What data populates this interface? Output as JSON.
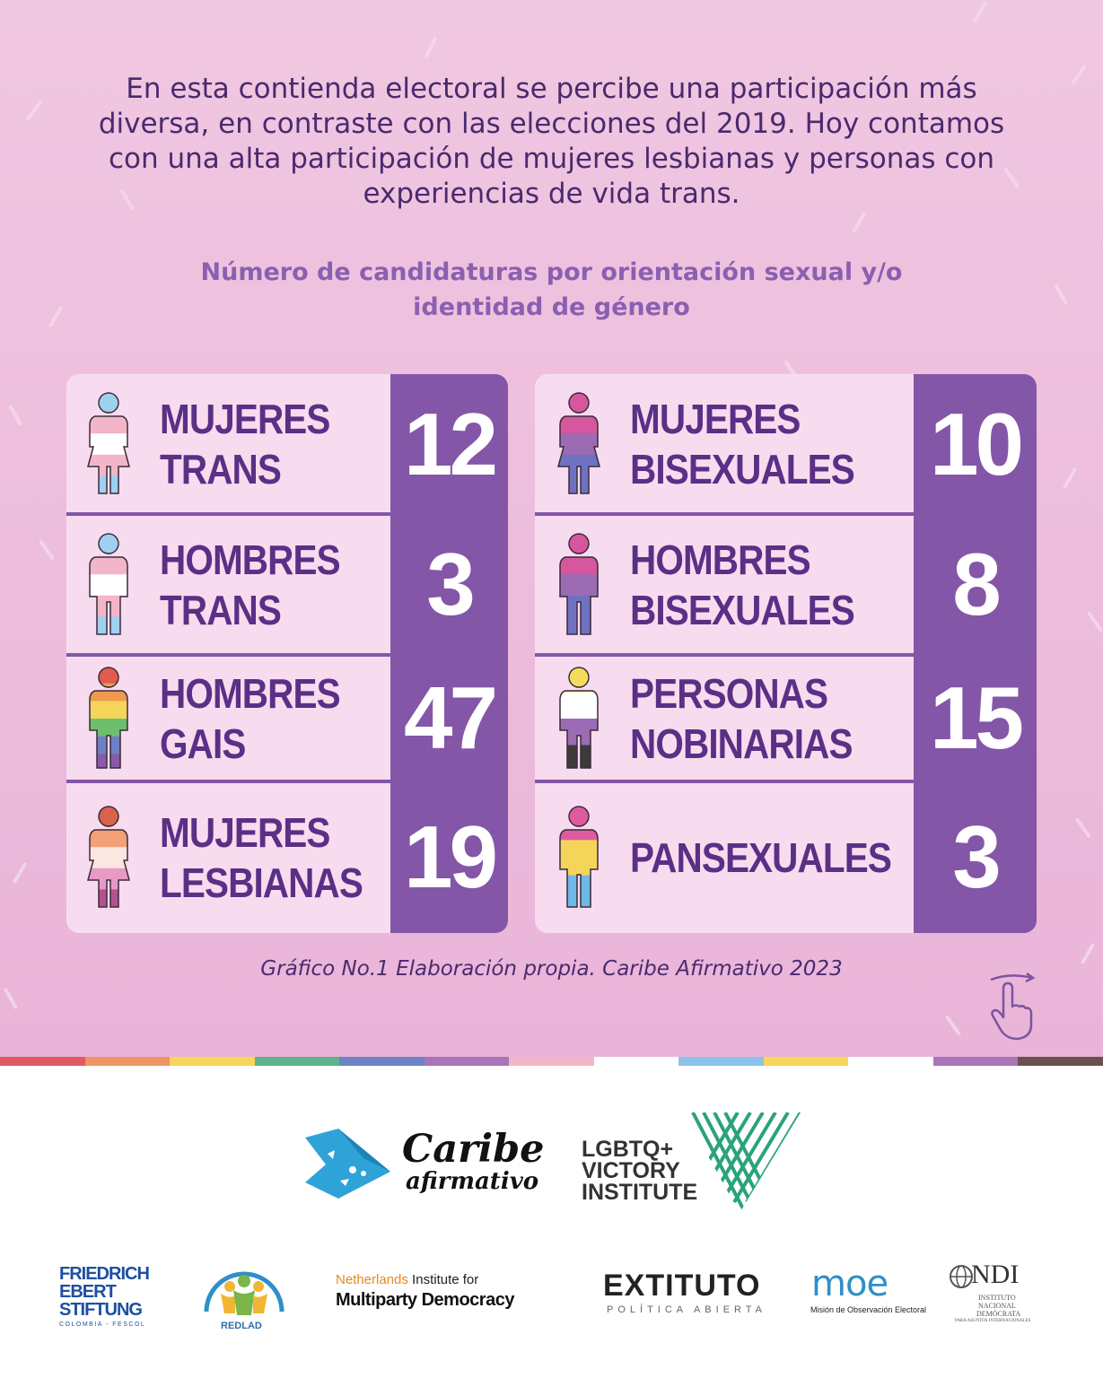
{
  "intro_text": "En esta contienda electoral se percibe una participación más diversa, en contraste con las elecciones del 2019. Hoy contamos con una alta participación de mujeres lesbianas y personas con experiencias de vida trans.",
  "chart_data": {
    "type": "table",
    "title": "Número de candidaturas por orientación sexual y/o identidad de género",
    "categories": [
      "MUJERES TRANS",
      "HOMBRES TRANS",
      "HOMBRES GAIS",
      "MUJERES LESBIANAS",
      "MUJERES BISEXUALES",
      "HOMBRES BISEXUALES",
      "PERSONAS NOBINARIAS",
      "PANSEXUALES"
    ],
    "values": [
      12,
      3,
      47,
      19,
      10,
      8,
      15,
      3
    ],
    "rows_left": [
      {
        "line1": "MUJERES",
        "line2": "TRANS",
        "value": "12"
      },
      {
        "line1": "HOMBRES",
        "line2": "TRANS",
        "value": "3"
      },
      {
        "line1": "HOMBRES",
        "line2": "GAIS",
        "value": "47"
      },
      {
        "line1": "MUJERES",
        "line2": "LESBIANAS",
        "value": "19"
      }
    ],
    "rows_right": [
      {
        "line1": "MUJERES",
        "line2": "BISEXUALES",
        "value": "10"
      },
      {
        "line1": "HOMBRES",
        "line2": "BISEXUALES",
        "value": "8"
      },
      {
        "line1": "PERSONAS",
        "line2": "NOBINARIAS",
        "value": "15"
      },
      {
        "line1": "PANSEXUALES",
        "line2": "",
        "value": "3"
      }
    ]
  },
  "caption": "Gráfico No.1 Elaboración propia. Caribe Afirmativo 2023",
  "colors": {
    "background": "#f0c7e1",
    "panel": "#f7dcef",
    "number_column": "#8456a8",
    "label_text": "#5b2f86",
    "title_text": "#8b5fb0"
  },
  "icons": {
    "swipe": "swipe-hand-icon",
    "figures": [
      "trans-flag-woman-icon",
      "trans-flag-man-icon",
      "rainbow-flag-man-icon",
      "lesbian-flag-woman-icon",
      "bisexual-flag-woman-icon",
      "bisexual-flag-man-icon",
      "nonbinary-flag-person-icon",
      "pansexual-flag-person-icon"
    ]
  },
  "logos": {
    "caribe_line1": "Caribe",
    "caribe_line2": "afirmativo",
    "victory_line1": "LGBTQ+",
    "victory_line2": "VICTORY",
    "victory_line3": "INSTITUTE",
    "fes_line1": "FRIEDRICH",
    "fes_line2": "EBERT",
    "fes_line3": "STIFTUNG",
    "fes_sub": "COLOMBIA - FESCOL",
    "redlad": "REDLAD",
    "nimd_line1_a": "Netherlands",
    "nimd_line1_b": " Institute for",
    "nimd_line2": "Multiparty Democracy",
    "extituto_main": "EXTITUTO",
    "extituto_sub": "POLÍTICA ABIERTA",
    "moe_main": "moe",
    "moe_sub": "Misión de Observación Electoral",
    "ndi_main": "NDI",
    "ndi_sub1": "INSTITUTO",
    "ndi_sub2": "NACIONAL",
    "ndi_sub3": "DEMÓCRATA",
    "ndi_sub4": "PARA ASUNTOS INTERNACIONALES"
  }
}
